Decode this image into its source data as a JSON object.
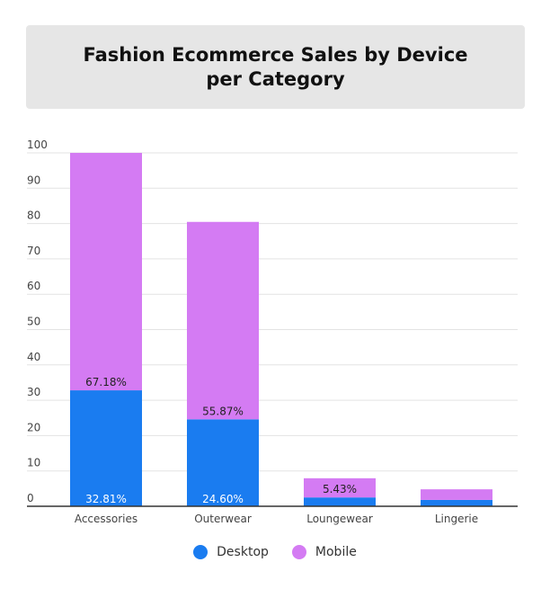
{
  "chart_data": {
    "type": "bar",
    "stacked": true,
    "title": "Fashion Ecommerce Sales by Device per Category",
    "xlabel": "",
    "ylabel": "",
    "ylim": [
      0,
      100
    ],
    "yticks": [
      0,
      10,
      20,
      30,
      40,
      50,
      60,
      70,
      80,
      90,
      100
    ],
    "grid": true,
    "legend_position": "bottom",
    "categories": [
      "Accessories",
      "Outerwear",
      "Loungewear",
      "Lingerie"
    ],
    "series": [
      {
        "name": "Desktop",
        "color": "#1a7cf0",
        "values": [
          32.81,
          24.6,
          2.5,
          1.8
        ],
        "labels": [
          "32.81%",
          "24.60%",
          "",
          ""
        ]
      },
      {
        "name": "Mobile",
        "color": "#d47bf3",
        "values": [
          67.18,
          55.87,
          5.43,
          3.0
        ],
        "labels": [
          "67.18%",
          "55.87%",
          "5.43%",
          ""
        ]
      }
    ]
  }
}
